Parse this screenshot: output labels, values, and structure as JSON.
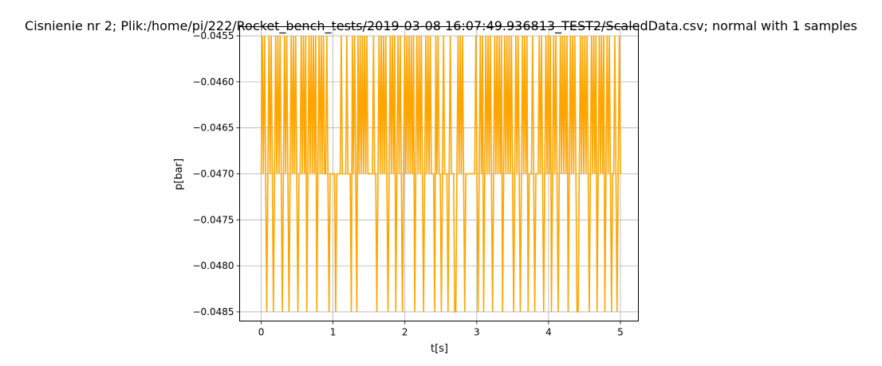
{
  "chart_data": {
    "type": "line",
    "title": "Cisnienie nr 2; Plik:/home/pi/222/Rocket_bench_tests/2019-03-08 16:07:49.936813_TEST2/ScaledData.csv; normal with 1 samples",
    "xlabel": "t[s]",
    "ylabel": "p[bar]",
    "xlim": [
      -0.3,
      5.25
    ],
    "ylim": [
      -0.0486,
      -0.0454
    ],
    "xticks": [
      0,
      1,
      2,
      3,
      4,
      5
    ],
    "xtick_labels": [
      "0",
      "1",
      "2",
      "3",
      "4",
      "5"
    ],
    "yticks": [
      -0.0485,
      -0.048,
      -0.0475,
      -0.047,
      -0.0465,
      -0.046,
      -0.0455
    ],
    "ytick_labels": [
      "−0.0485",
      "−0.0480",
      "−0.0475",
      "−0.0470",
      "−0.0465",
      "−0.0460",
      "−0.0455"
    ],
    "grid": true,
    "color": "#ffa500",
    "series": [
      {
        "levels": [
          -0.0455,
          -0.047,
          -0.0485
        ],
        "level_sequence": [
          1,
          0,
          1,
          0,
          1,
          2,
          1,
          0,
          1,
          0,
          1,
          2,
          1,
          0,
          1,
          0,
          1,
          0,
          1,
          2,
          1,
          0,
          1,
          0,
          1,
          2,
          1,
          0,
          1,
          0,
          1,
          0,
          1,
          2,
          1,
          1,
          0,
          1,
          0,
          1,
          0,
          2,
          1,
          0,
          1,
          0,
          1,
          0,
          1,
          0,
          2,
          1,
          0,
          1,
          0,
          1,
          0,
          1,
          1,
          0,
          1,
          2,
          1,
          1,
          1,
          1,
          1,
          2,
          1,
          1,
          1,
          1,
          0,
          1,
          1,
          1,
          1,
          0,
          1,
          1,
          1,
          2,
          0,
          1,
          0,
          1,
          2,
          0,
          1,
          0,
          1,
          0,
          1,
          0,
          1,
          0,
          1,
          1,
          1,
          1,
          1,
          0,
          1,
          1,
          2,
          1,
          0,
          1,
          0,
          1,
          0,
          1,
          0,
          1,
          2,
          1,
          0,
          1,
          0,
          1,
          0,
          2,
          1,
          0,
          1,
          0,
          1,
          2,
          1,
          0,
          1,
          0,
          1,
          0,
          1,
          0,
          1,
          0,
          2,
          1,
          0,
          1,
          0,
          1,
          0,
          1,
          2,
          1,
          0,
          1,
          0,
          1,
          0,
          1,
          1,
          1,
          2,
          0,
          1,
          0,
          1,
          1,
          2,
          1,
          0,
          1,
          1,
          1,
          2,
          1,
          0,
          1,
          1,
          1,
          2,
          2,
          1,
          0,
          1,
          0,
          1,
          0,
          1,
          2,
          1,
          1,
          1,
          1,
          1,
          1,
          1,
          1,
          1,
          0,
          1,
          2,
          1,
          0,
          1,
          0,
          2,
          1,
          0,
          1,
          0,
          1,
          0,
          1,
          2,
          1,
          0,
          1,
          0,
          1,
          0,
          1,
          0,
          2,
          1,
          0,
          1,
          0,
          1,
          0,
          1,
          0,
          1,
          2,
          1,
          0,
          1,
          0,
          1,
          2,
          1,
          0,
          1,
          0,
          1,
          0,
          2,
          1,
          1,
          1,
          0,
          1,
          2,
          1,
          1,
          1,
          0,
          1,
          0,
          1,
          2,
          1,
          0,
          1,
          0,
          1,
          0,
          2,
          1,
          0,
          1,
          0,
          1,
          2,
          1,
          0,
          1,
          0,
          1,
          0,
          1,
          0,
          2,
          1,
          0,
          1,
          0,
          1,
          0,
          1,
          2,
          2,
          1,
          0,
          1,
          0,
          1,
          0,
          1,
          0,
          1,
          2,
          1,
          0,
          1,
          0,
          1,
          0,
          2,
          1,
          0,
          1,
          0,
          1,
          0,
          2,
          1,
          0,
          1,
          0,
          1,
          2,
          1,
          1,
          0,
          1,
          2,
          1,
          0,
          1
        ]
      }
    ]
  }
}
